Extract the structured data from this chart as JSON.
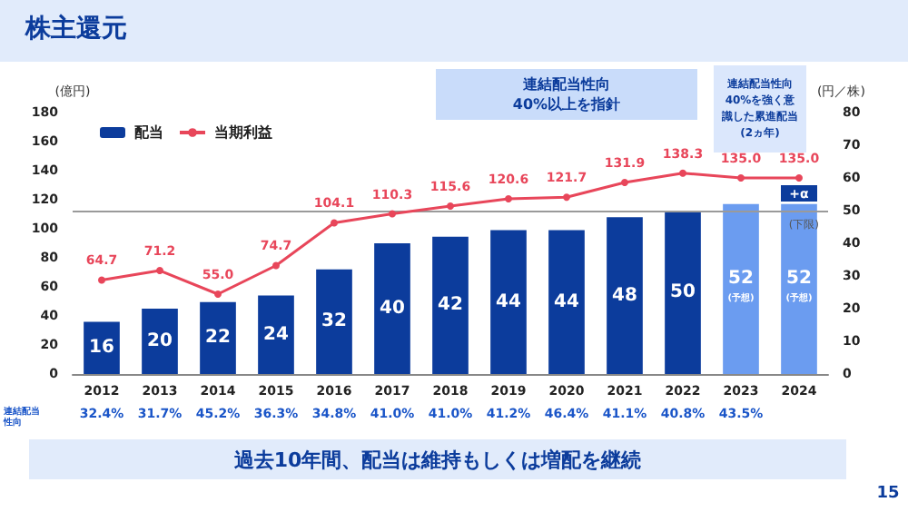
{
  "chart_data": {
    "type": "bar",
    "title": "株主還元",
    "ylabel": "(億円)",
    "y2label": "(円／株)",
    "categories": [
      "2012",
      "2013",
      "2014",
      "2015",
      "2016",
      "2017",
      "2018",
      "2019",
      "2020",
      "2021",
      "2022",
      "2023",
      "2024"
    ],
    "series": [
      {
        "name": "配当",
        "axis": "y2",
        "color": "#0c3c9c",
        "colors": [
          "#0c3c9c",
          "#0c3c9c",
          "#0c3c9c",
          "#0c3c9c",
          "#0c3c9c",
          "#0c3c9c",
          "#0c3c9c",
          "#0c3c9c",
          "#0c3c9c",
          "#0c3c9c",
          "#0c3c9c",
          "#6b9cf0",
          "#6b9cf0"
        ],
        "values": [
          16,
          20,
          22,
          24,
          32,
          40,
          42,
          44,
          44,
          48,
          50,
          52,
          52
        ],
        "value_labels": [
          "16",
          "20",
          "22",
          "24",
          "32",
          "40",
          "42",
          "44",
          "44",
          "48",
          "50",
          "52\n(予想)",
          "52\n(予想)"
        ]
      },
      {
        "name": "当期利益",
        "type": "line",
        "color": "#e8465a",
        "values": [
          64.7,
          71.2,
          55.0,
          74.7,
          104.1,
          110.3,
          115.6,
          120.6,
          121.7,
          131.9,
          138.3,
          135.0,
          135.0
        ],
        "value_labels": [
          "64.7",
          "71.2",
          "55.0",
          "74.7",
          "104.1",
          "110.3",
          "115.6",
          "120.6",
          "121.7",
          "131.9",
          "138.3",
          "135.0",
          "135.0"
        ]
      }
    ],
    "ylim": [
      0,
      180
    ],
    "yticks": [
      0,
      20,
      40,
      60,
      80,
      100,
      120,
      140,
      160,
      180
    ],
    "y2lim": [
      0,
      80
    ],
    "y2ticks": [
      0,
      10,
      20,
      30,
      40,
      50,
      60,
      70,
      80
    ],
    "ref_lines": [
      {
        "axis": "y2",
        "value": 50,
        "label": "(下限)",
        "color": "#9a9a9a"
      }
    ],
    "annotations": [
      "連結配当性向",
      "連結配当性向40%以上を指針",
      "連結配当性向40%を強く意識した累進配当(2ヵ年)",
      "過去10年間、配当は維持もしくは増配を継続",
      "15",
      "+α",
      "32.4%",
      "31.7%",
      "45.2%",
      "36.3%",
      "34.8%",
      "41.0%",
      "41.0%",
      "41.2%",
      "46.4%",
      "41.1%",
      "40.8%",
      "43.5%"
    ],
    "legend": "top left",
    "grid": false,
    "marker": "circle",
    "line_style": "solid"
  }
}
